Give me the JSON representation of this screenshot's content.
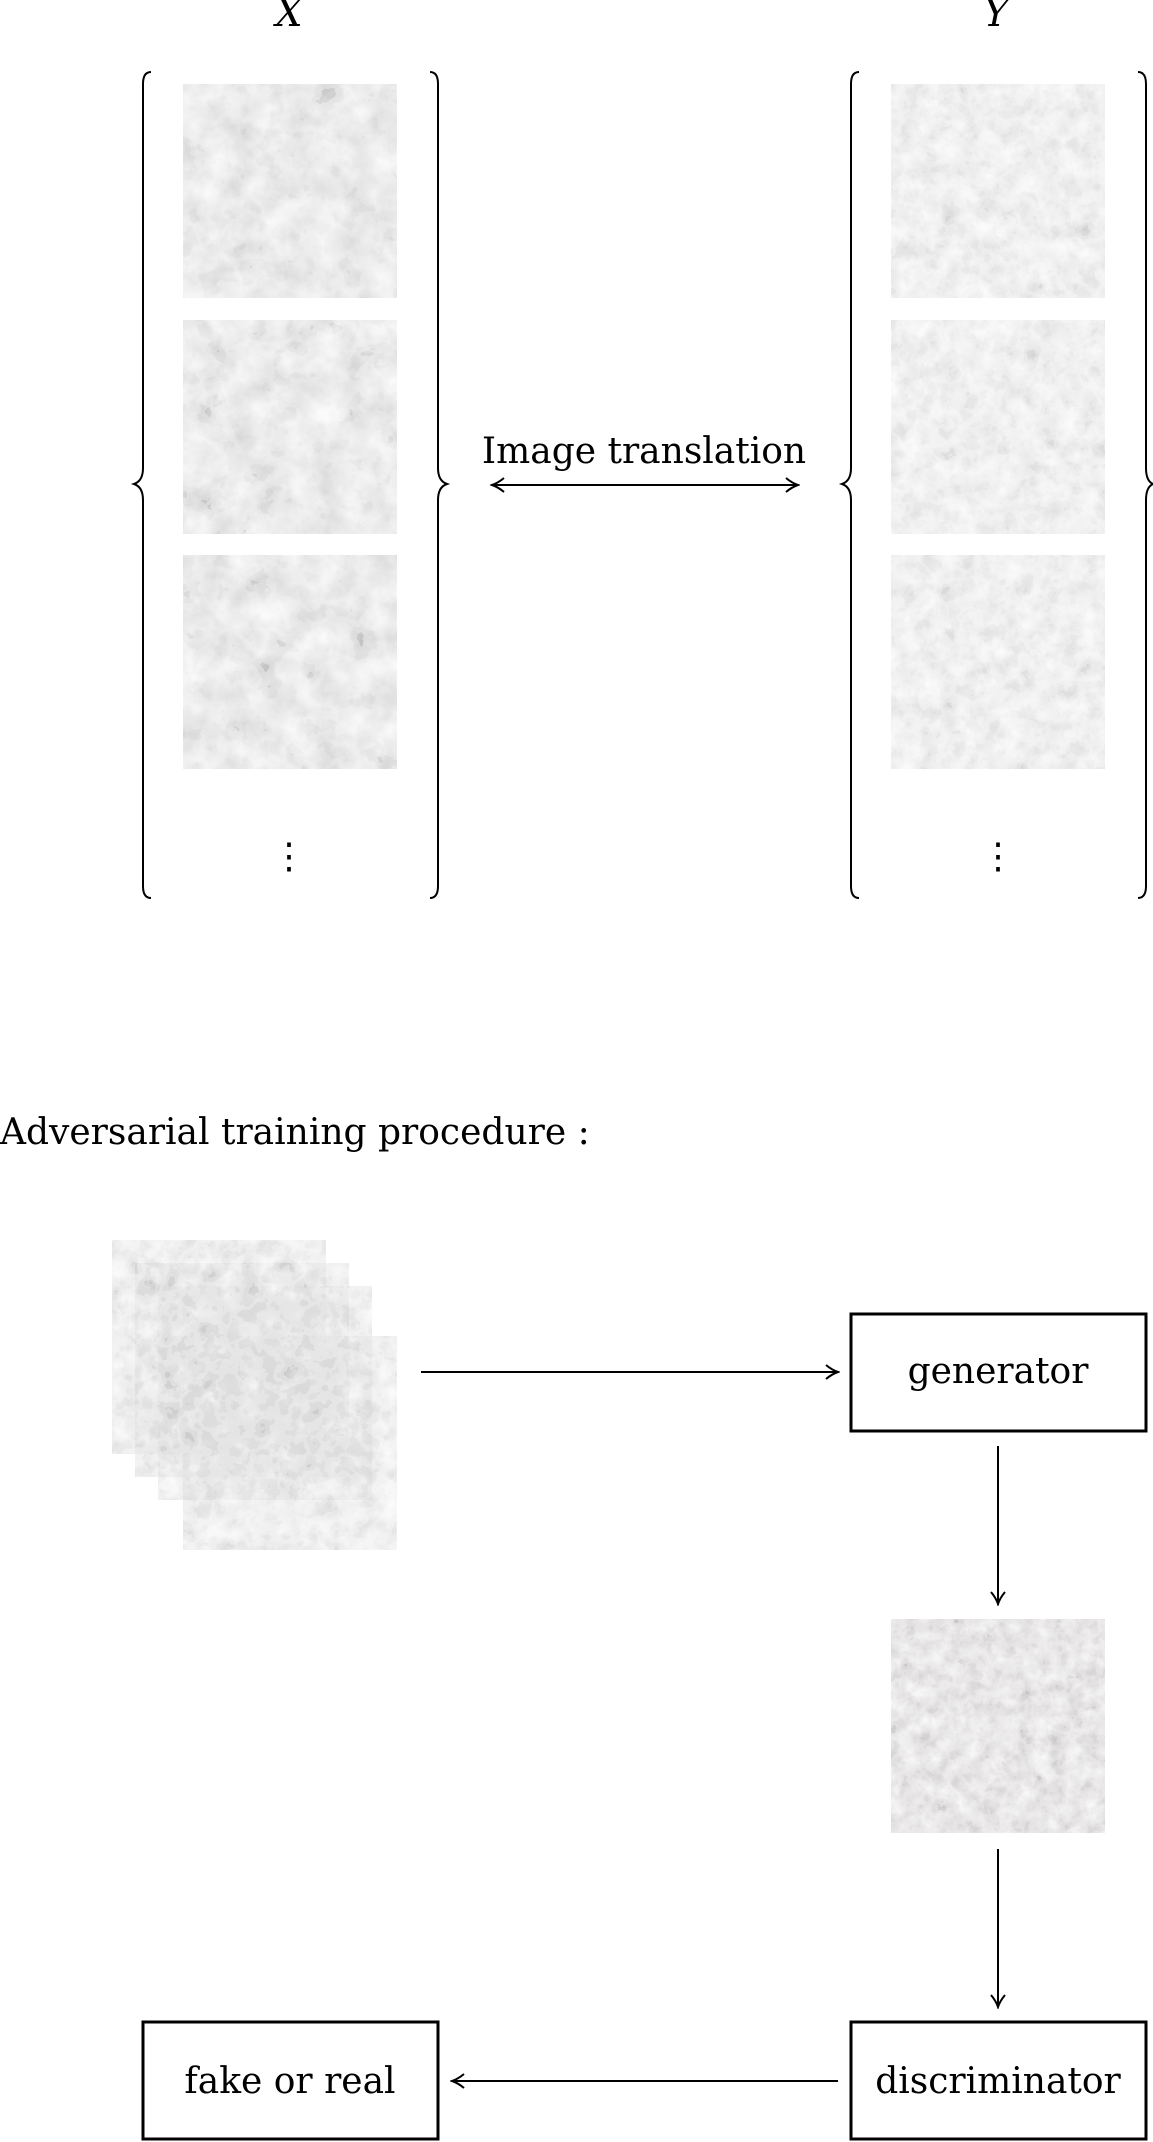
{
  "sets": {
    "left_label": "X",
    "right_label": "Y",
    "ellipsis": "⋮"
  },
  "translation": {
    "label": "Image translation"
  },
  "training": {
    "heading": "Adversarial training procedure :"
  },
  "boxes": {
    "generator": "generator",
    "discriminator": "discriminator",
    "output": "fake or real"
  },
  "colors": {
    "ink": "#000000",
    "tile_x_base": "#9a9a9a",
    "tile_y_base": "#b4b4b4",
    "tile_gen_base": "#8a8a8a"
  },
  "icons": {
    "arrow_head": "open-chevron-arrowhead",
    "brace": "curly-brace"
  }
}
